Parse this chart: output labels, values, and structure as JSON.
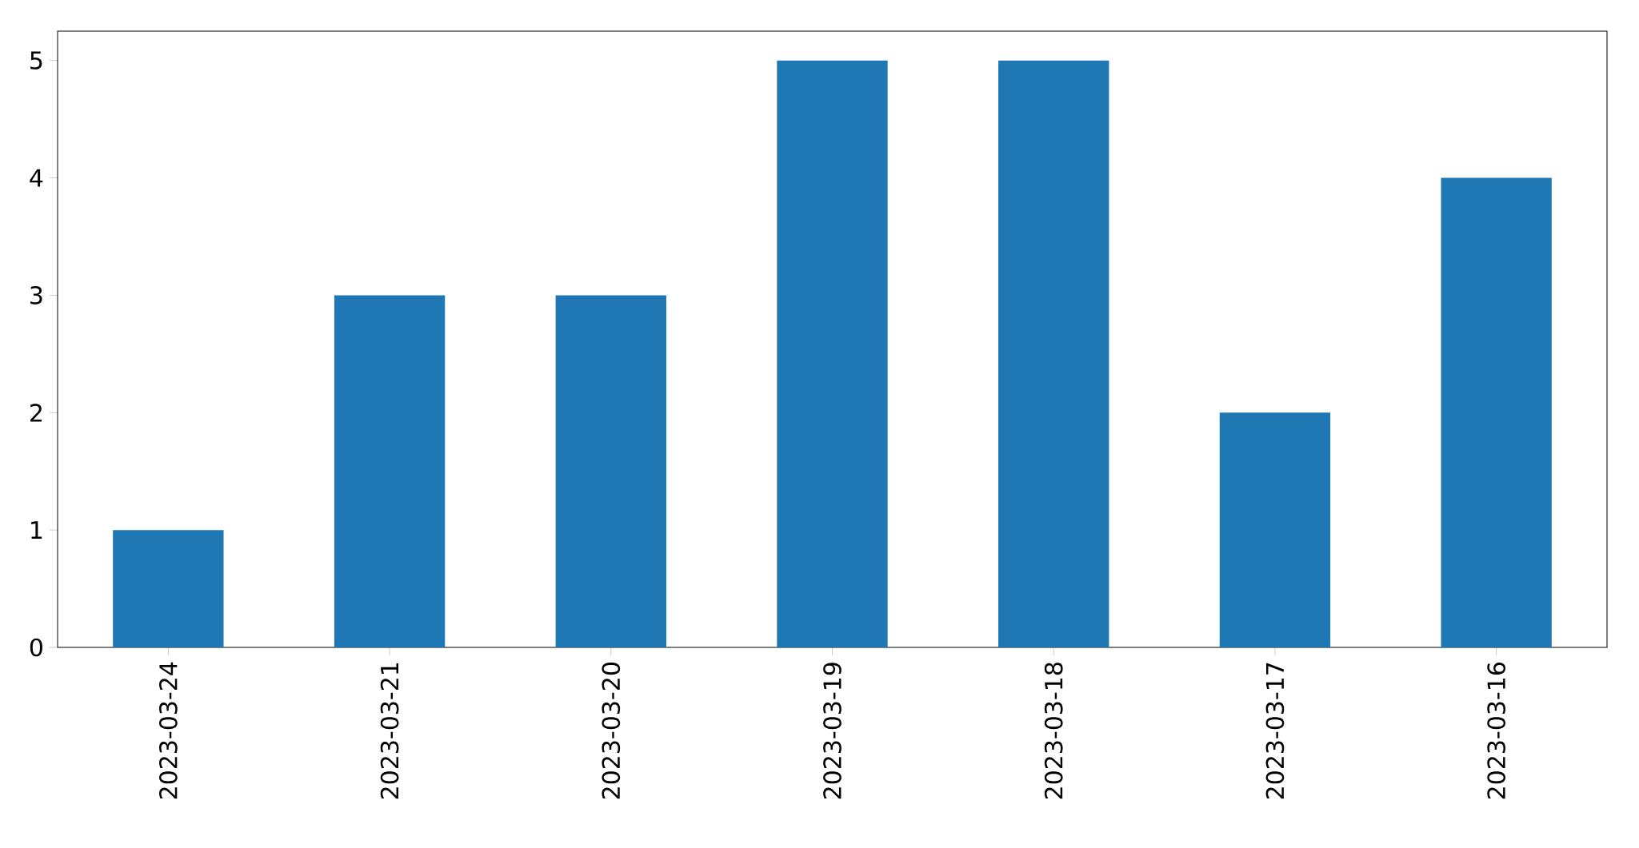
{
  "chart_data": {
    "type": "bar",
    "categories": [
      "2023-03-24",
      "2023-03-21",
      "2023-03-20",
      "2023-03-19",
      "2023-03-18",
      "2023-03-17",
      "2023-03-16"
    ],
    "values": [
      1,
      3,
      3,
      5,
      5,
      2,
      4
    ],
    "color": "#1f77b4",
    "ylim": [
      0,
      5.25
    ],
    "yticks": [
      0,
      1,
      2,
      3,
      4,
      5
    ]
  }
}
